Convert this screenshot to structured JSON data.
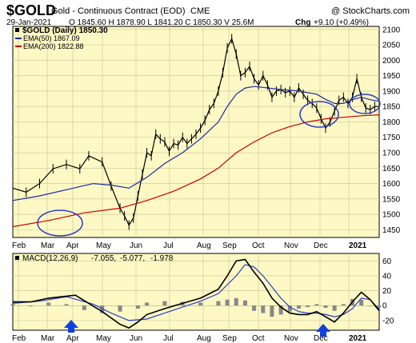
{
  "header": {
    "symbol": "$GOLD",
    "description": "Gold - Continuous Contract (EOD)",
    "exchange": "CME",
    "watermark": "@ StockCharts.com",
    "date": "29-Jan-2021",
    "ohlc": "O 1845.60  H 1878.90  L 1841.20  C 1850.30  V 25.6M",
    "chg_label": "Chg",
    "chg_value": "+9.10 (+0.49%)"
  },
  "legend": {
    "price": "$GOLD (Daily) 1850.30",
    "ema50": "EMA(50) 1867.09",
    "ema200": "EMA(200) 1822.88",
    "macd_label": "MACD(12,26,9)",
    "macd_val": "-7.055,",
    "signal_val": "-5.077,",
    "hist_val": "-1.978"
  },
  "colors": {
    "panel_bg": "#fdf8c4",
    "price": "#000000",
    "ema50": "#1a2aa8",
    "ema200": "#cc0000",
    "circle": "#2a3ec8",
    "macd_signal": "#2a3ec8",
    "hist": "#888888",
    "arrow": "#1040e0",
    "chg": "#008800"
  },
  "chart_data": [
    {
      "type": "line",
      "x": [
        "Feb 2020",
        "Mar 2020",
        "Apr 2020",
        "May 2020",
        "Jun 2020",
        "Jul 2020",
        "Aug 2020",
        "Sep 2020",
        "Oct 2020",
        "Nov 2020",
        "Dec 2020",
        "Jan 2021"
      ],
      "x_labels": [
        "Feb",
        "Mar",
        "Apr",
        "May",
        "Jun",
        "Jul",
        "Aug",
        "Sep",
        "Oct",
        "Nov",
        "Dec",
        "2021"
      ],
      "ylim": [
        1425,
        2110
      ],
      "yticks": [
        1450,
        1500,
        1550,
        1600,
        1650,
        1700,
        1750,
        1800,
        1850,
        1900,
        1950,
        2000,
        2050,
        2100
      ],
      "series": [
        {
          "name": "$GOLD (Daily)",
          "values": [
            [
              0,
              1585
            ],
            [
              3,
              1572
            ],
            [
              6,
              1600
            ],
            [
              9,
              1648
            ],
            [
              12,
              1662
            ],
            [
              15,
              1648
            ],
            [
              17,
              1690
            ],
            [
              20,
              1670
            ],
            [
              22,
              1592
            ],
            [
              24,
              1520
            ],
            [
              25,
              1495
            ],
            [
              26,
              1465
            ],
            [
              27,
              1488
            ],
            [
              28,
              1560
            ],
            [
              29,
              1630
            ],
            [
              30,
              1700
            ],
            [
              31,
              1690
            ],
            [
              32,
              1760
            ],
            [
              33,
              1745
            ],
            [
              34,
              1735
            ],
            [
              35,
              1705
            ],
            [
              36,
              1730
            ],
            [
              37,
              1725
            ],
            [
              38,
              1750
            ],
            [
              39,
              1730
            ],
            [
              40,
              1745
            ],
            [
              41,
              1760
            ],
            [
              42,
              1780
            ],
            [
              43,
              1805
            ],
            [
              44,
              1840
            ],
            [
              45,
              1860
            ],
            [
              46,
              1900
            ],
            [
              47,
              1960
            ],
            [
              48,
              2040
            ],
            [
              49,
              2070
            ],
            [
              50,
              2020
            ],
            [
              51,
              1950
            ],
            [
              52,
              1960
            ],
            [
              53,
              1980
            ],
            [
              54,
              1940
            ],
            [
              55,
              1920
            ],
            [
              56,
              1950
            ],
            [
              57,
              1920
            ],
            [
              58,
              1880
            ],
            [
              59,
              1900
            ],
            [
              60,
              1905
            ],
            [
              61,
              1895
            ],
            [
              62,
              1900
            ],
            [
              63,
              1880
            ],
            [
              64,
              1910
            ],
            [
              65,
              1890
            ],
            [
              66,
              1870
            ],
            [
              67,
              1860
            ],
            [
              68,
              1845
            ],
            [
              69,
              1810
            ],
            [
              70,
              1780
            ],
            [
              71,
              1800
            ],
            [
              72,
              1835
            ],
            [
              73,
              1870
            ],
            [
              74,
              1880
            ],
            [
              75,
              1860
            ],
            [
              76,
              1880
            ],
            [
              77,
              1940
            ],
            [
              78,
              1880
            ],
            [
              79,
              1845
            ],
            [
              80,
              1840
            ],
            [
              81,
              1850
            ],
            [
              82,
              1850
            ]
          ]
        },
        {
          "name": "EMA(50)",
          "values": [
            [
              0,
              1545
            ],
            [
              6,
              1560
            ],
            [
              12,
              1580
            ],
            [
              18,
              1600
            ],
            [
              22,
              1595
            ],
            [
              26,
              1585
            ],
            [
              30,
              1620
            ],
            [
              34,
              1665
            ],
            [
              38,
              1700
            ],
            [
              42,
              1745
            ],
            [
              46,
              1800
            ],
            [
              48,
              1850
            ],
            [
              50,
              1890
            ],
            [
              52,
              1910
            ],
            [
              54,
              1915
            ],
            [
              56,
              1912
            ],
            [
              60,
              1905
            ],
            [
              64,
              1900
            ],
            [
              68,
              1890
            ],
            [
              70,
              1873
            ],
            [
              72,
              1860
            ],
            [
              74,
              1860
            ],
            [
              76,
              1872
            ],
            [
              78,
              1880
            ],
            [
              80,
              1872
            ],
            [
              82,
              1867
            ]
          ]
        },
        {
          "name": "EMA(200)",
          "values": [
            [
              0,
              1460
            ],
            [
              8,
              1480
            ],
            [
              16,
              1505
            ],
            [
              24,
              1520
            ],
            [
              30,
              1545
            ],
            [
              36,
              1575
            ],
            [
              42,
              1615
            ],
            [
              46,
              1650
            ],
            [
              50,
              1700
            ],
            [
              54,
              1735
            ],
            [
              58,
              1765
            ],
            [
              62,
              1785
            ],
            [
              66,
              1800
            ],
            [
              70,
              1810
            ],
            [
              74,
              1815
            ],
            [
              78,
              1820
            ],
            [
              82,
              1823
            ]
          ]
        }
      ]
    },
    {
      "type": "line",
      "title": "MACD(12,26,9)",
      "x_labels": [
        "Feb",
        "Mar",
        "Apr",
        "May",
        "Jun",
        "Jul",
        "Aug",
        "Sep",
        "Oct",
        "Nov",
        "Dec",
        "2021"
      ],
      "ylim": [
        -33,
        70
      ],
      "yticks": [
        -20,
        0,
        20,
        40,
        60
      ],
      "series": [
        {
          "name": "MACD",
          "values": [
            [
              0,
              5
            ],
            [
              4,
              5
            ],
            [
              8,
              10
            ],
            [
              14,
              14
            ],
            [
              20,
              -8
            ],
            [
              24,
              -25
            ],
            [
              26,
              -30
            ],
            [
              28,
              -22
            ],
            [
              30,
              -12
            ],
            [
              34,
              -4
            ],
            [
              38,
              3
            ],
            [
              42,
              10
            ],
            [
              46,
              22
            ],
            [
              48,
              40
            ],
            [
              50,
              60
            ],
            [
              52,
              62
            ],
            [
              54,
              45
            ],
            [
              56,
              30
            ],
            [
              58,
              10
            ],
            [
              60,
              -2
            ],
            [
              62,
              -10
            ],
            [
              64,
              -12
            ],
            [
              66,
              -12
            ],
            [
              68,
              -8
            ],
            [
              70,
              -15
            ],
            [
              72,
              -22
            ],
            [
              74,
              -10
            ],
            [
              76,
              5
            ],
            [
              78,
              18
            ],
            [
              80,
              8
            ],
            [
              82,
              -7
            ]
          ]
        },
        {
          "name": "Signal",
          "values": [
            [
              0,
              3
            ],
            [
              6,
              6
            ],
            [
              12,
              12
            ],
            [
              18,
              2
            ],
            [
              22,
              -10
            ],
            [
              26,
              -20
            ],
            [
              30,
              -18
            ],
            [
              34,
              -10
            ],
            [
              38,
              -2
            ],
            [
              42,
              6
            ],
            [
              46,
              16
            ],
            [
              50,
              40
            ],
            [
              52,
              55
            ],
            [
              54,
              52
            ],
            [
              56,
              40
            ],
            [
              58,
              25
            ],
            [
              60,
              10
            ],
            [
              62,
              -2
            ],
            [
              64,
              -8
            ],
            [
              66,
              -10
            ],
            [
              68,
              -10
            ],
            [
              70,
              -12
            ],
            [
              72,
              -15
            ],
            [
              74,
              -12
            ],
            [
              76,
              -4
            ],
            [
              78,
              10
            ],
            [
              80,
              8
            ],
            [
              82,
              -5
            ]
          ]
        }
      ],
      "histogram": [
        [
          0,
          2
        ],
        [
          4,
          -1
        ],
        [
          8,
          4
        ],
        [
          12,
          2
        ],
        [
          16,
          -6
        ],
        [
          20,
          -10
        ],
        [
          24,
          -8
        ],
        [
          28,
          -4
        ],
        [
          30,
          4
        ],
        [
          34,
          6
        ],
        [
          38,
          5
        ],
        [
          42,
          4
        ],
        [
          46,
          6
        ],
        [
          48,
          8
        ],
        [
          50,
          10
        ],
        [
          52,
          7
        ],
        [
          54,
          -7
        ],
        [
          56,
          -10
        ],
        [
          58,
          -15
        ],
        [
          60,
          -12
        ],
        [
          62,
          -8
        ],
        [
          64,
          -4
        ],
        [
          66,
          -2
        ],
        [
          68,
          2
        ],
        [
          70,
          -3
        ],
        [
          72,
          -7
        ],
        [
          74,
          2
        ],
        [
          76,
          9
        ],
        [
          78,
          8
        ],
        [
          80,
          0
        ],
        [
          82,
          -2
        ]
      ]
    }
  ]
}
